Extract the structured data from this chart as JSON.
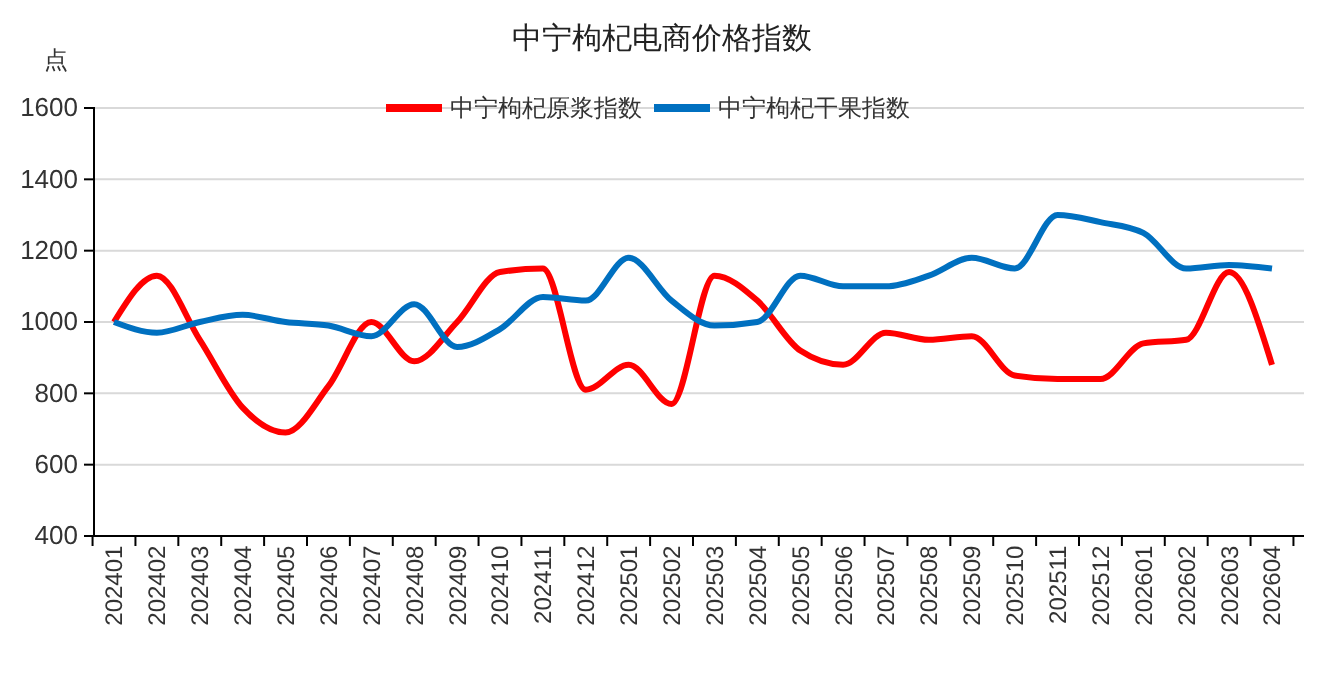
{
  "chart_data": {
    "type": "line",
    "title": "中宁枸杞电商价格指数",
    "ylabel": "点",
    "categories": [
      "202401",
      "202402",
      "202403",
      "202404",
      "202405",
      "202406",
      "202407",
      "202408",
      "202409",
      "202410",
      "202411",
      "202412",
      "202501",
      "202502",
      "202503",
      "202504",
      "202505",
      "202506",
      "202507",
      "202508",
      "202509",
      "202510",
      "202511",
      "202512",
      "202601",
      "202602",
      "202603",
      "202604"
    ],
    "series": [
      {
        "name": "中宁枸杞原浆指数",
        "color": "#ff0000",
        "values": [
          1000,
          1130,
          950,
          760,
          690,
          820,
          1000,
          890,
          1000,
          1140,
          1150,
          810,
          880,
          770,
          1130,
          1060,
          920,
          880,
          970,
          950,
          960,
          850,
          840,
          840,
          940,
          950,
          1140,
          880
        ]
      },
      {
        "name": "中宁枸杞干果指数",
        "color": "#0070c0",
        "values": [
          1000,
          970,
          1000,
          1020,
          1000,
          990,
          960,
          1050,
          930,
          980,
          1070,
          1060,
          1180,
          1060,
          990,
          1000,
          1130,
          1100,
          1100,
          1130,
          1180,
          1150,
          1300,
          1280,
          1250,
          1150,
          1160,
          1150
        ]
      }
    ],
    "ylim": [
      400,
      1600
    ],
    "yticks": [
      400,
      600,
      800,
      1000,
      1200,
      1400,
      1600
    ],
    "grid": "y",
    "legend": "top",
    "marker": "none",
    "line_style": "solid"
  }
}
